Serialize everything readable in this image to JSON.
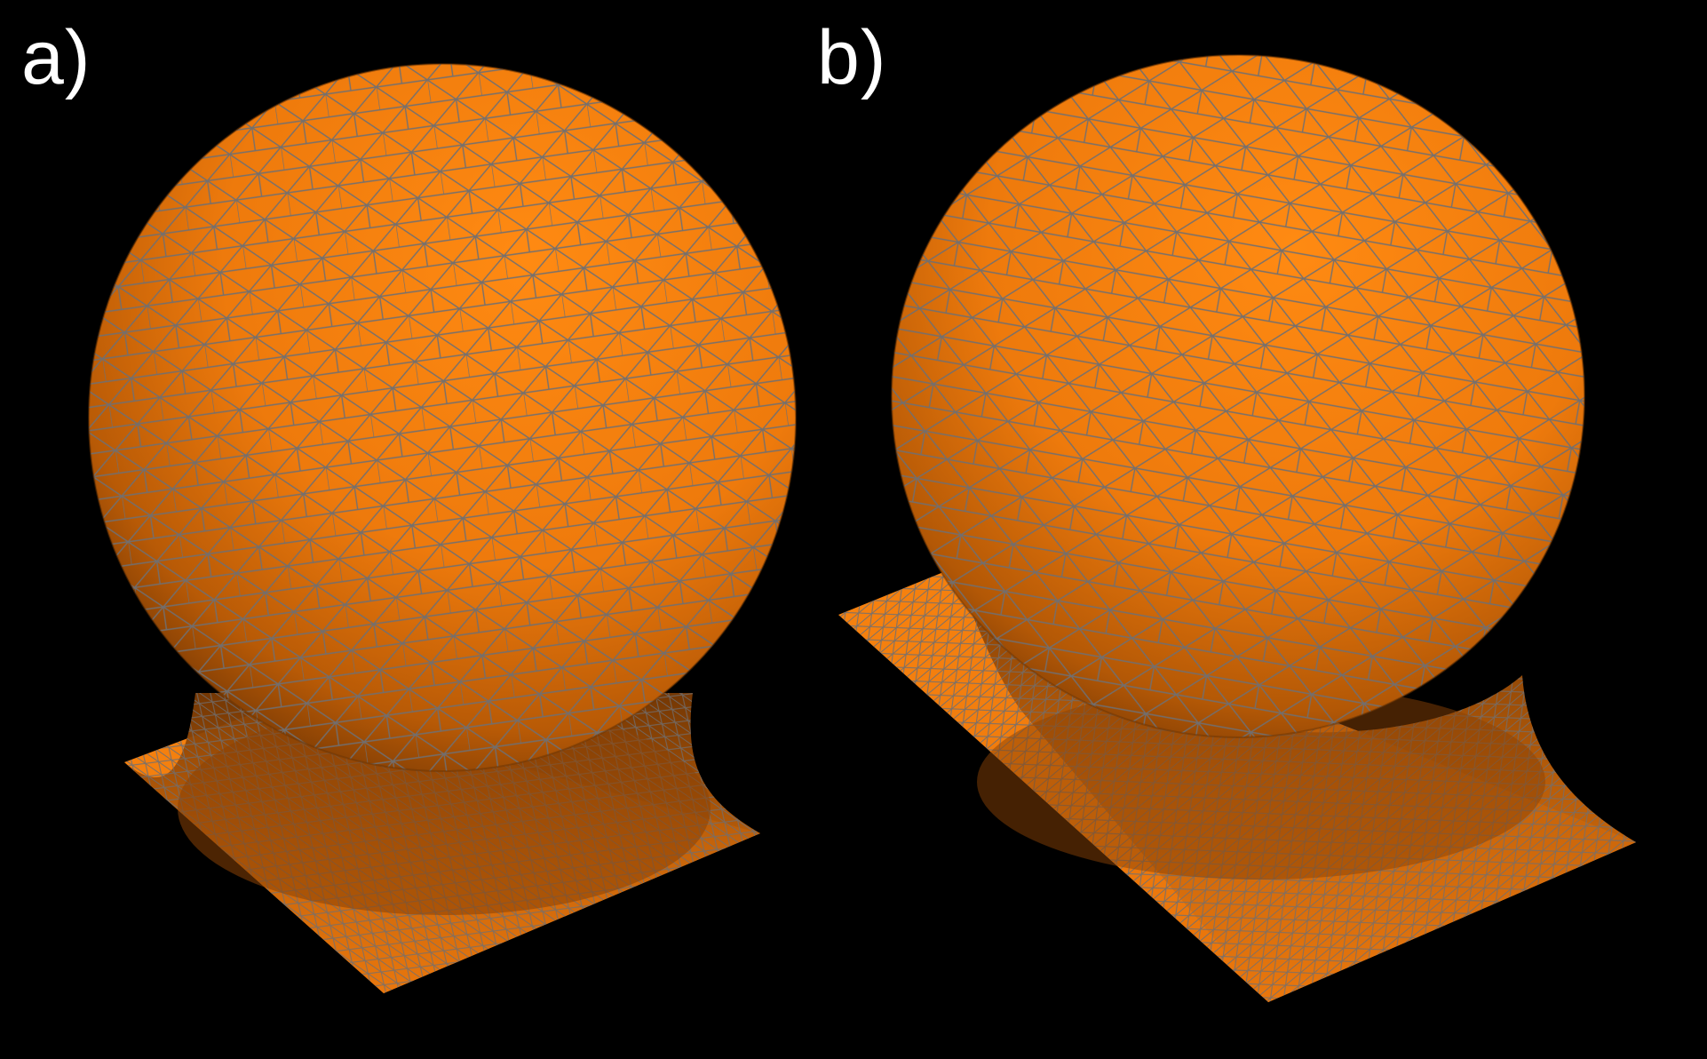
{
  "panels": [
    {
      "label": "a)"
    },
    {
      "label": "b)"
    }
  ],
  "colors": {
    "background": "#000000",
    "surface": "#f57f0d",
    "surface_highlight": "#ff8a12",
    "surface_shadow": "#7a3a04",
    "mesh_edges": "#6f6f72",
    "label_text": "#ffffff"
  }
}
